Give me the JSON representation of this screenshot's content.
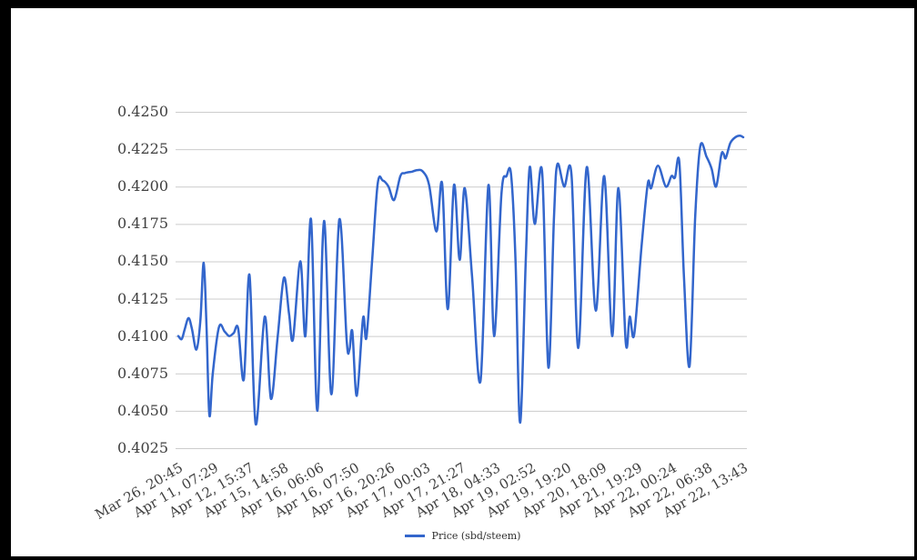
{
  "window": {
    "frame_color": "#000000",
    "canvas_color": "#ffffff"
  },
  "colors": {
    "line": "#3366cc",
    "gridline": "#cccccc",
    "axis_text": "#404040",
    "legend_text": "#2e2e2e"
  },
  "legend": {
    "label": "Price (sbd/steem)",
    "position": "bottom"
  },
  "chart_data": {
    "type": "line",
    "title": "",
    "xlabel": "",
    "ylabel": "",
    "grid": true,
    "legend_position": "bottom",
    "ylim": [
      0.4025,
      0.425
    ],
    "y_tick_step": 0.0025,
    "y_tick_labels": [
      "0.4250",
      "0.4225",
      "0.4200",
      "0.4175",
      "0.4150",
      "0.4125",
      "0.4100",
      "0.4075",
      "0.4050",
      "0.4025"
    ],
    "x_tick_labels": [
      "Mar 26, 20:45",
      "Apr 11, 07:29",
      "Apr 12, 15:37",
      "Apr 15, 14:58",
      "Apr 16, 06:06",
      "Apr 16, 07:50",
      "Apr 16, 20:26",
      "Apr 17, 00:03",
      "Apr 17, 21:27",
      "Apr 18, 04:33",
      "Apr 19, 02:52",
      "Apr 19, 19:20",
      "Apr 20, 18:09",
      "Apr 21, 19:29",
      "Apr 22, 00:24",
      "Apr 22, 06:38",
      "Apr 22, 13:43"
    ],
    "series": [
      {
        "name": "Price (sbd/steem)",
        "color": "#3366cc",
        "points": [
          [
            0.0,
            0.41
          ],
          [
            0.006,
            0.4098
          ],
          [
            0.011,
            0.4104
          ],
          [
            0.018,
            0.4112
          ],
          [
            0.024,
            0.4105
          ],
          [
            0.032,
            0.4091
          ],
          [
            0.039,
            0.411
          ],
          [
            0.045,
            0.4149
          ],
          [
            0.05,
            0.4105
          ],
          [
            0.055,
            0.4047
          ],
          [
            0.061,
            0.4075
          ],
          [
            0.072,
            0.4106
          ],
          [
            0.082,
            0.4103
          ],
          [
            0.09,
            0.41
          ],
          [
            0.098,
            0.4102
          ],
          [
            0.106,
            0.4105
          ],
          [
            0.116,
            0.4071
          ],
          [
            0.126,
            0.4141
          ],
          [
            0.137,
            0.4041
          ],
          [
            0.153,
            0.4113
          ],
          [
            0.164,
            0.4058
          ],
          [
            0.176,
            0.41
          ],
          [
            0.187,
            0.4139
          ],
          [
            0.196,
            0.4115
          ],
          [
            0.203,
            0.4098
          ],
          [
            0.216,
            0.415
          ],
          [
            0.225,
            0.41
          ],
          [
            0.235,
            0.4178
          ],
          [
            0.246,
            0.405
          ],
          [
            0.258,
            0.4177
          ],
          [
            0.271,
            0.4061
          ],
          [
            0.285,
            0.4178
          ],
          [
            0.298,
            0.4097
          ],
          [
            0.303,
            0.4091
          ],
          [
            0.308,
            0.4103
          ],
          [
            0.316,
            0.406
          ],
          [
            0.327,
            0.4112
          ],
          [
            0.333,
            0.4099
          ],
          [
            0.343,
            0.415
          ],
          [
            0.353,
            0.4202
          ],
          [
            0.362,
            0.4204
          ],
          [
            0.372,
            0.42
          ],
          [
            0.382,
            0.4191
          ],
          [
            0.393,
            0.4207
          ],
          [
            0.401,
            0.4209
          ],
          [
            0.414,
            0.421
          ],
          [
            0.423,
            0.4211
          ],
          [
            0.433,
            0.421
          ],
          [
            0.444,
            0.4201
          ],
          [
            0.457,
            0.417
          ],
          [
            0.467,
            0.4202
          ],
          [
            0.477,
            0.4118
          ],
          [
            0.488,
            0.4201
          ],
          [
            0.498,
            0.4151
          ],
          [
            0.507,
            0.4199
          ],
          [
            0.52,
            0.414
          ],
          [
            0.535,
            0.407
          ],
          [
            0.549,
            0.4201
          ],
          [
            0.559,
            0.41
          ],
          [
            0.572,
            0.4195
          ],
          [
            0.581,
            0.4207
          ],
          [
            0.589,
            0.4208
          ],
          [
            0.597,
            0.415
          ],
          [
            0.605,
            0.4042
          ],
          [
            0.615,
            0.415
          ],
          [
            0.622,
            0.4213
          ],
          [
            0.631,
            0.4175
          ],
          [
            0.644,
            0.421
          ],
          [
            0.655,
            0.4079
          ],
          [
            0.665,
            0.418
          ],
          [
            0.671,
            0.4215
          ],
          [
            0.683,
            0.42
          ],
          [
            0.696,
            0.4208
          ],
          [
            0.708,
            0.4092
          ],
          [
            0.723,
            0.4213
          ],
          [
            0.739,
            0.4117
          ],
          [
            0.754,
            0.4207
          ],
          [
            0.768,
            0.41
          ],
          [
            0.779,
            0.4199
          ],
          [
            0.792,
            0.4096
          ],
          [
            0.799,
            0.4113
          ],
          [
            0.807,
            0.4101
          ],
          [
            0.82,
            0.416
          ],
          [
            0.831,
            0.4202
          ],
          [
            0.837,
            0.4199
          ],
          [
            0.849,
            0.4214
          ],
          [
            0.863,
            0.42
          ],
          [
            0.873,
            0.4207
          ],
          [
            0.879,
            0.4206
          ],
          [
            0.887,
            0.4216
          ],
          [
            0.895,
            0.414
          ],
          [
            0.905,
            0.408
          ],
          [
            0.915,
            0.418
          ],
          [
            0.924,
            0.4227
          ],
          [
            0.935,
            0.422
          ],
          [
            0.944,
            0.4212
          ],
          [
            0.952,
            0.42
          ],
          [
            0.961,
            0.4221
          ],
          [
            0.965,
            0.4222
          ],
          [
            0.969,
            0.4219
          ],
          [
            0.977,
            0.4229
          ],
          [
            0.986,
            0.4233
          ],
          [
            0.994,
            0.4234
          ],
          [
            1.0,
            0.4233
          ]
        ]
      }
    ]
  }
}
